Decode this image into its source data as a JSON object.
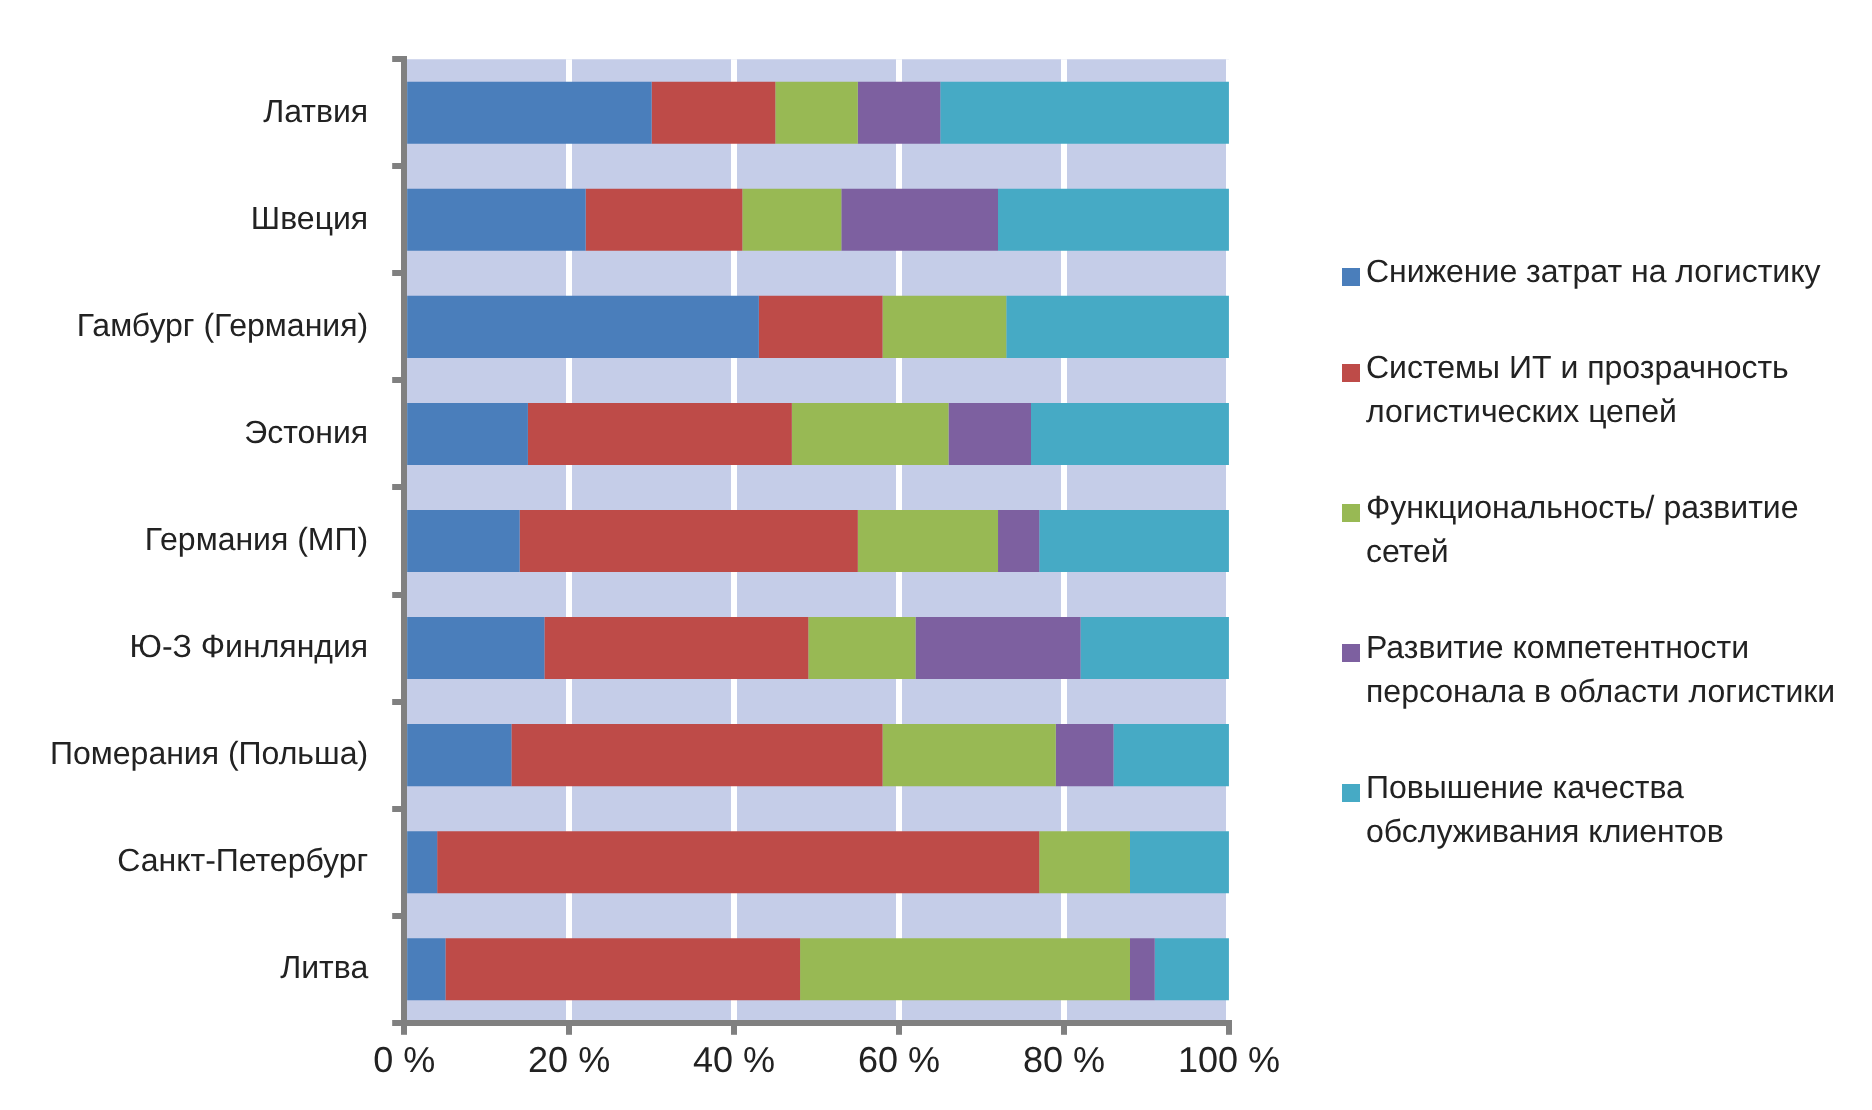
{
  "chart_data": {
    "type": "bar",
    "orientation": "horizontal",
    "stacked": true,
    "categories": [
      "Латвия",
      "Швеция",
      "Гамбург (Германия)",
      "Эстония",
      "Германия (МП)",
      "Ю-З Финляндия",
      "Померания (Польша)",
      "Санкт-Петербург",
      "Литва"
    ],
    "series": [
      {
        "name": "Снижение затрат на логистику",
        "color": "#4a7ebb",
        "values": [
          30,
          22,
          43,
          15,
          14,
          17,
          13,
          4,
          5
        ]
      },
      {
        "name": "Системы ИТ и прозрачность логистических цепей",
        "color": "#be4b48",
        "values": [
          15,
          19,
          15,
          32,
          41,
          32,
          45,
          73,
          43
        ]
      },
      {
        "name": "Функциональность/ развитие сетей",
        "color": "#98b954",
        "values": [
          10,
          12,
          15,
          19,
          17,
          13,
          21,
          11,
          40
        ]
      },
      {
        "name": "Развитие компетентности персонала в области логистики",
        "color": "#7d60a0",
        "values": [
          10,
          19,
          0,
          10,
          5,
          20,
          7,
          0,
          3
        ]
      },
      {
        "name": "Повышение качества обслуживания клиентов",
        "color": "#46aac5",
        "values": [
          35,
          28,
          27,
          24,
          23,
          18,
          14,
          12,
          9
        ]
      }
    ],
    "xlim": [
      0,
      100
    ],
    "xticks": [
      {
        "value": 0,
        "label": "0 %"
      },
      {
        "value": 20,
        "label": "20 %"
      },
      {
        "value": 40,
        "label": "40 %"
      },
      {
        "value": 60,
        "label": "60 %"
      },
      {
        "value": 80,
        "label": "80 %"
      },
      {
        "value": 100,
        "label": "100 %"
      }
    ],
    "grid": "x",
    "legend": "right"
  }
}
